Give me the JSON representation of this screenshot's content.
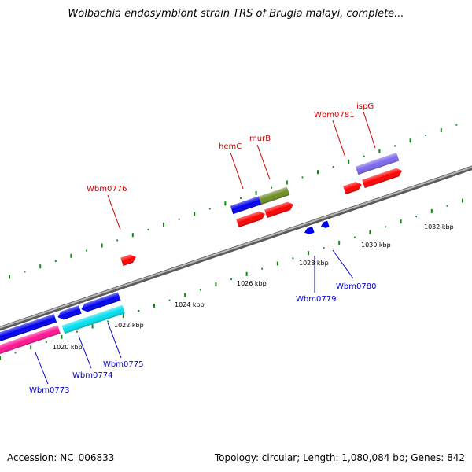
{
  "title": "Wolbachia endosymbiont strain TRS of Brugia malayi, complete...",
  "footer": {
    "accession": "Accession: NC_006833",
    "stats": "Topology: circular; Length: 1,080,084 bp; Genes: 842"
  },
  "colors": {
    "backbone": "#8a8a8a",
    "tick": "#0a8a0a",
    "label_forward": "#cc0000",
    "label_reverse": "#0000cc",
    "red": "#ff0000",
    "blue": "#0000ee",
    "cyan": "#00e0ee",
    "magenta": "#ff1493",
    "olive": "#6b8e23",
    "slate": "#7b68ee"
  },
  "scale_labels": [
    "1020 kbp",
    "1022 kbp",
    "1024 kbp",
    "1026 kbp",
    "1028 kbp",
    "1030 kbp",
    "1032 kbp"
  ],
  "gene_labels": {
    "forward": [
      "Wbm0776",
      "hemC",
      "murB",
      "Wbm0781",
      "ispG"
    ],
    "reverse": [
      "Wbm0773",
      "Wbm0774",
      "Wbm0775",
      "Wbm0779",
      "Wbm0780"
    ]
  }
}
